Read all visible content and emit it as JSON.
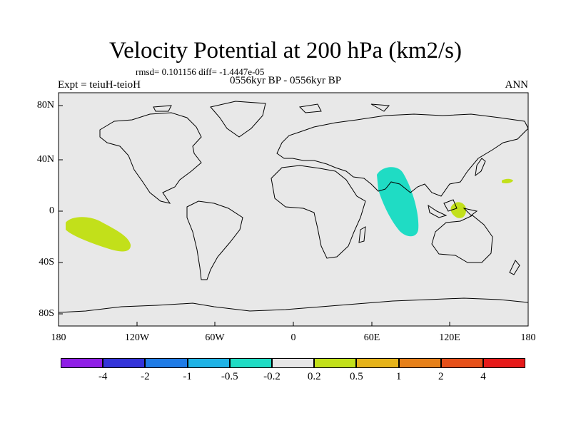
{
  "title": "Velocity Potential at 200 hPa (km2/s)",
  "stats": "rmsd= 0.101156 diff= -1.4447e-05",
  "experiment": "Expt = teiuH-teioH",
  "period": "0556kyr BP - 0556kyr BP",
  "season": "ANN",
  "lat_ticks": [
    "80N",
    "40N",
    "0",
    "40S",
    "80S"
  ],
  "lon_ticks": [
    "180",
    "120W",
    "60W",
    "0",
    "60E",
    "120E",
    "180"
  ],
  "colorbar": {
    "colors": [
      "#8f1ee6",
      "#3333d9",
      "#1f7be6",
      "#1fb3e6",
      "#1fdcc4",
      "#e6e6e6",
      "#c2e01a",
      "#e6b31a",
      "#e6801a",
      "#e6501a",
      "#e61a1a"
    ],
    "labels": [
      "-4",
      "-2",
      "-1",
      "-0.5",
      "-0.2",
      "0.2",
      "0.5",
      "1",
      "2",
      "4"
    ]
  },
  "anomalies": [
    {
      "name": "central-pacific-positive",
      "sign": "positive",
      "color": "#c2e01a"
    },
    {
      "name": "indian-ocean-negative",
      "sign": "negative",
      "color": "#1fdcc4"
    },
    {
      "name": "maritime-continent-positive",
      "sign": "positive",
      "color": "#c2e01a"
    },
    {
      "name": "west-pacific-positive",
      "sign": "positive",
      "color": "#c2e01a"
    }
  ]
}
